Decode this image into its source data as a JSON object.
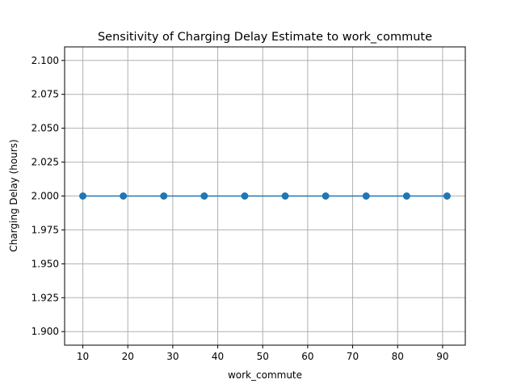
{
  "chart_data": {
    "type": "line",
    "title": "Sensitivity of Charging Delay Estimate to work_commute",
    "xlabel": "work_commute",
    "ylabel": "Charging Delay (hours)",
    "x": [
      10,
      19,
      28,
      37,
      46,
      55,
      64,
      73,
      82,
      91
    ],
    "series": [
      {
        "values": [
          2.0,
          2.0,
          2.0,
          2.0,
          2.0,
          2.0,
          2.0,
          2.0,
          2.0,
          2.0
        ],
        "color": "#1f77b4",
        "marker": "circle"
      }
    ],
    "xlim": [
      5.95,
      95.05
    ],
    "ylim": [
      1.89,
      2.11
    ],
    "xticks": [
      10,
      20,
      30,
      40,
      50,
      60,
      70,
      80,
      90
    ],
    "xtick_labels": [
      "10",
      "20",
      "30",
      "40",
      "50",
      "60",
      "70",
      "80",
      "90"
    ],
    "yticks": [
      1.9,
      1.925,
      1.95,
      1.975,
      2.0,
      2.025,
      2.05,
      2.075,
      2.1
    ],
    "ytick_labels": [
      "1.900",
      "1.925",
      "1.950",
      "1.975",
      "2.000",
      "2.025",
      "2.050",
      "2.075",
      "2.100"
    ],
    "grid": true,
    "legend": "none"
  }
}
